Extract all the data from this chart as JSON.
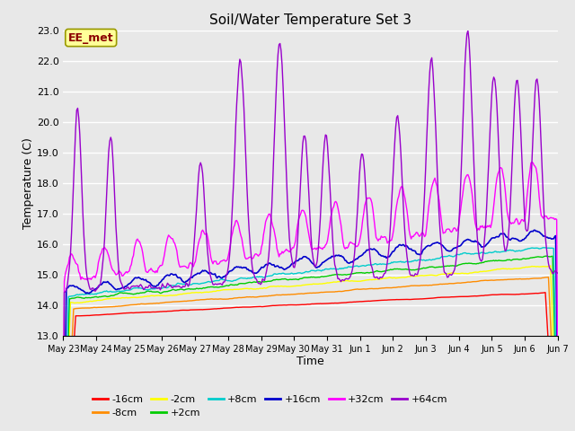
{
  "title": "Soil/Water Temperature Set 3",
  "xlabel": "Time",
  "ylabel": "Temperature (C)",
  "ylim": [
    13.0,
    23.0
  ],
  "yticks": [
    13.0,
    14.0,
    15.0,
    16.0,
    17.0,
    18.0,
    19.0,
    20.0,
    21.0,
    22.0,
    23.0
  ],
  "x_labels": [
    "May 23",
    "May 24",
    "May 25",
    "May 26",
    "May 27",
    "May 28",
    "May 29",
    "May 30",
    "May 31",
    "Jun 1",
    "Jun 2",
    "Jun 3",
    "Jun 4",
    "Jun 5",
    "Jun 6",
    "Jun 7"
  ],
  "annotation_text": "EE_met",
  "annotation_color": "#8B0000",
  "annotation_bg": "#FFFF99",
  "annotation_border": "#999900",
  "series_colors": {
    "-16cm": "#FF0000",
    "-8cm": "#FF8C00",
    "-2cm": "#FFFF00",
    "+2cm": "#00CC00",
    "+8cm": "#00CCCC",
    "+16cm": "#0000CC",
    "+32cm": "#FF00FF",
    "+64cm": "#9900CC"
  },
  "background_color": "#E8E8E8",
  "plot_bg": "#E8E8E8",
  "grid_color": "#FFFFFF",
  "n_points": 480,
  "days": 15
}
